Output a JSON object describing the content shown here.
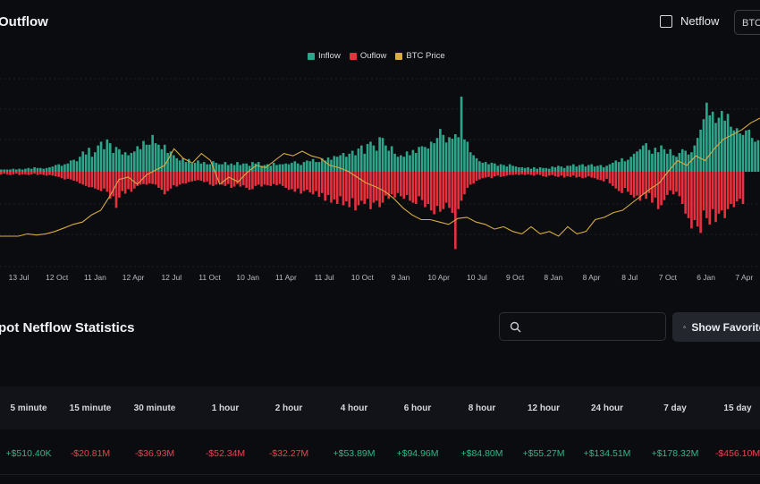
{
  "header": {
    "title": "Outflow",
    "netflow_label": "Netflow",
    "asset_select_value": "BTC"
  },
  "colors": {
    "inflow": "#2ea58a",
    "outflow": "#e7313f",
    "btc_price": "#d8ac42",
    "positive": "#2fb889",
    "negative": "#f0414f"
  },
  "chart_data": {
    "type": "bar",
    "legend": [
      "Inflow",
      "Ouflow",
      "BTC Price"
    ],
    "legend_position": "top-center",
    "x_ticks": [
      "13 Jul",
      "12 Oct",
      "11 Jan",
      "12 Apr",
      "12 Jul",
      "11 Oct",
      "10 Jan",
      "11 Apr",
      "11 Jul",
      "10 Oct",
      "9 Jan",
      "10 Apr",
      "10 Jul",
      "9 Oct",
      "8 Jan",
      "8 Apr",
      "8 Jul",
      "7 Oct",
      "6 Jan",
      "7 Apr"
    ],
    "inflow": [
      0.03,
      0.03,
      0.03,
      0.03,
      0.04,
      0.03,
      0.04,
      0.03,
      0.04,
      0.05,
      0.04,
      0.06,
      0.05,
      0.05,
      0.04,
      0.05,
      0.06,
      0.07,
      0.09,
      0.1,
      0.08,
      0.1,
      0.11,
      0.15,
      0.16,
      0.14,
      0.2,
      0.27,
      0.23,
      0.32,
      0.2,
      0.26,
      0.35,
      0.4,
      0.3,
      0.43,
      0.38,
      0.25,
      0.33,
      0.3,
      0.23,
      0.26,
      0.22,
      0.25,
      0.27,
      0.34,
      0.3,
      0.41,
      0.36,
      0.36,
      0.49,
      0.38,
      0.36,
      0.3,
      0.36,
      0.25,
      0.27,
      0.22,
      0.18,
      0.15,
      0.18,
      0.13,
      0.17,
      0.11,
      0.12,
      0.15,
      0.11,
      0.13,
      0.1,
      0.1,
      0.14,
      0.12,
      0.1,
      0.1,
      0.13,
      0.09,
      0.11,
      0.09,
      0.13,
      0.09,
      0.11,
      0.11,
      0.08,
      0.13,
      0.11,
      0.13,
      0.08,
      0.09,
      0.1,
      0.08,
      0.12,
      0.09,
      0.1,
      0.1,
      0.11,
      0.1,
      0.12,
      0.14,
      0.11,
      0.09,
      0.13,
      0.15,
      0.14,
      0.17,
      0.13,
      0.13,
      0.18,
      0.15,
      0.19,
      0.16,
      0.21,
      0.2,
      0.22,
      0.25,
      0.2,
      0.24,
      0.28,
      0.22,
      0.31,
      0.35,
      0.24,
      0.37,
      0.4,
      0.35,
      0.28,
      0.46,
      0.45,
      0.35,
      0.28,
      0.34,
      0.24,
      0.2,
      0.22,
      0.2,
      0.27,
      0.22,
      0.29,
      0.25,
      0.33,
      0.34,
      0.33,
      0.31,
      0.4,
      0.38,
      0.45,
      0.57,
      0.49,
      0.39,
      0.46,
      0.44,
      0.5,
      0.46,
      1.0,
      0.43,
      0.4,
      0.26,
      0.22,
      0.18,
      0.14,
      0.12,
      0.13,
      0.1,
      0.12,
      0.11,
      0.08,
      0.1,
      0.09,
      0.07,
      0.1,
      0.08,
      0.07,
      0.06,
      0.06,
      0.05,
      0.06,
      0.04,
      0.06,
      0.04,
      0.06,
      0.05,
      0.05,
      0.04,
      0.07,
      0.06,
      0.08,
      0.07,
      0.05,
      0.08,
      0.08,
      0.1,
      0.07,
      0.09,
      0.1,
      0.07,
      0.09,
      0.1,
      0.07,
      0.08,
      0.09,
      0.06,
      0.08,
      0.1,
      0.12,
      0.15,
      0.13,
      0.18,
      0.14,
      0.16,
      0.2,
      0.24,
      0.27,
      0.3,
      0.35,
      0.38,
      0.29,
      0.24,
      0.32,
      0.26,
      0.35,
      0.3,
      0.24,
      0.3,
      0.22,
      0.2,
      0.25,
      0.3,
      0.28,
      0.23,
      0.26,
      0.35,
      0.45,
      0.56,
      0.7,
      0.92,
      0.75,
      0.8,
      0.65,
      0.72,
      0.81,
      0.68,
      0.77,
      0.6,
      0.55,
      0.58,
      0.51,
      0.49,
      0.55,
      0.56,
      0.45,
      0.4,
      0.42
    ],
    "outflow": [
      0.04,
      0.03,
      0.04,
      0.05,
      0.04,
      0.03,
      0.05,
      0.04,
      0.04,
      0.05,
      0.04,
      0.03,
      0.05,
      0.04,
      0.05,
      0.06,
      0.05,
      0.06,
      0.07,
      0.08,
      0.1,
      0.12,
      0.11,
      0.12,
      0.14,
      0.15,
      0.18,
      0.2,
      0.22,
      0.24,
      0.24,
      0.26,
      0.28,
      0.3,
      0.26,
      0.31,
      0.42,
      0.38,
      0.56,
      0.4,
      0.3,
      0.34,
      0.27,
      0.31,
      0.26,
      0.22,
      0.2,
      0.19,
      0.2,
      0.18,
      0.19,
      0.2,
      0.25,
      0.28,
      0.35,
      0.3,
      0.26,
      0.21,
      0.23,
      0.2,
      0.18,
      0.18,
      0.16,
      0.15,
      0.14,
      0.13,
      0.14,
      0.16,
      0.15,
      0.2,
      0.22,
      0.2,
      0.17,
      0.2,
      0.22,
      0.19,
      0.25,
      0.23,
      0.19,
      0.23,
      0.21,
      0.25,
      0.28,
      0.27,
      0.22,
      0.2,
      0.23,
      0.2,
      0.21,
      0.22,
      0.19,
      0.21,
      0.19,
      0.22,
      0.25,
      0.28,
      0.27,
      0.31,
      0.26,
      0.34,
      0.3,
      0.28,
      0.32,
      0.35,
      0.3,
      0.39,
      0.33,
      0.45,
      0.36,
      0.48,
      0.43,
      0.5,
      0.38,
      0.52,
      0.46,
      0.55,
      0.41,
      0.6,
      0.52,
      0.45,
      0.5,
      0.42,
      0.58,
      0.48,
      0.45,
      0.55,
      0.48,
      0.37,
      0.42,
      0.35,
      0.4,
      0.33,
      0.38,
      0.42,
      0.36,
      0.45,
      0.48,
      0.5,
      0.38,
      0.44,
      0.55,
      0.5,
      0.6,
      0.66,
      0.53,
      0.62,
      0.58,
      0.48,
      0.56,
      0.64,
      1.2,
      0.58,
      0.45,
      0.35,
      0.25,
      0.2,
      0.18,
      0.14,
      0.12,
      0.1,
      0.09,
      0.08,
      0.1,
      0.07,
      0.06,
      0.08,
      0.07,
      0.06,
      0.05,
      0.05,
      0.04,
      0.05,
      0.04,
      0.05,
      0.04,
      0.05,
      0.06,
      0.04,
      0.05,
      0.07,
      0.08,
      0.06,
      0.05,
      0.07,
      0.08,
      0.06,
      0.09,
      0.07,
      0.08,
      0.06,
      0.09,
      0.08,
      0.1,
      0.09,
      0.07,
      0.09,
      0.1,
      0.12,
      0.13,
      0.15,
      0.11,
      0.18,
      0.22,
      0.26,
      0.3,
      0.33,
      0.25,
      0.31,
      0.36,
      0.4,
      0.37,
      0.45,
      0.35,
      0.42,
      0.33,
      0.48,
      0.4,
      0.58,
      0.52,
      0.44,
      0.36,
      0.29,
      0.35,
      0.31,
      0.38,
      0.5,
      0.65,
      0.72,
      0.88,
      0.75,
      0.85,
      0.95,
      0.6,
      0.72,
      0.82,
      0.58,
      0.78,
      0.65,
      0.6,
      0.72,
      0.58,
      0.5,
      0.55,
      0.46,
      0.42,
      0.5
    ],
    "btc_price": [
      0.0,
      0.0,
      0.0,
      0.02,
      0.01,
      0.02,
      0.04,
      0.07,
      0.1,
      0.12,
      0.18,
      0.22,
      0.34,
      0.48,
      0.5,
      0.44,
      0.52,
      0.56,
      0.6,
      0.74,
      0.66,
      0.62,
      0.7,
      0.64,
      0.44,
      0.5,
      0.46,
      0.54,
      0.6,
      0.58,
      0.64,
      0.7,
      0.68,
      0.72,
      0.68,
      0.66,
      0.6,
      0.58,
      0.55,
      0.5,
      0.45,
      0.42,
      0.38,
      0.32,
      0.24,
      0.18,
      0.14,
      0.14,
      0.12,
      0.1,
      0.15,
      0.16,
      0.12,
      0.1,
      0.06,
      0.08,
      0.04,
      0.02,
      0.08,
      0.02,
      0.04,
      0.0,
      0.08,
      0.02,
      0.04,
      0.14,
      0.16,
      0.2,
      0.22,
      0.28,
      0.34,
      0.4,
      0.45,
      0.55,
      0.64,
      0.6,
      0.68,
      0.64,
      0.74,
      0.82,
      0.86,
      0.9,
      0.96,
      1.0
    ],
    "btc_price_ranges_note": "",
    "grid": true
  },
  "stats": {
    "title": "pot Netflow Statistics",
    "search_placeholder": "",
    "favorites_label": "Show Favorites",
    "columns": [
      "5 minute",
      "15 minute",
      "30 minute",
      "1 hour",
      "2 hour",
      "4 hour",
      "6 hour",
      "8 hour",
      "12 hour",
      "24 hour",
      "7 day",
      "15 day"
    ],
    "values": [
      "+$510.40K",
      "-$20.81M",
      "-$36.93M",
      "-$52.34M",
      "-$32.27M",
      "+$53.89M",
      "+$94.96M",
      "+$84.80M",
      "+$55.27M",
      "+$134.51M",
      "+$178.32M",
      "-$456.10M"
    ]
  }
}
